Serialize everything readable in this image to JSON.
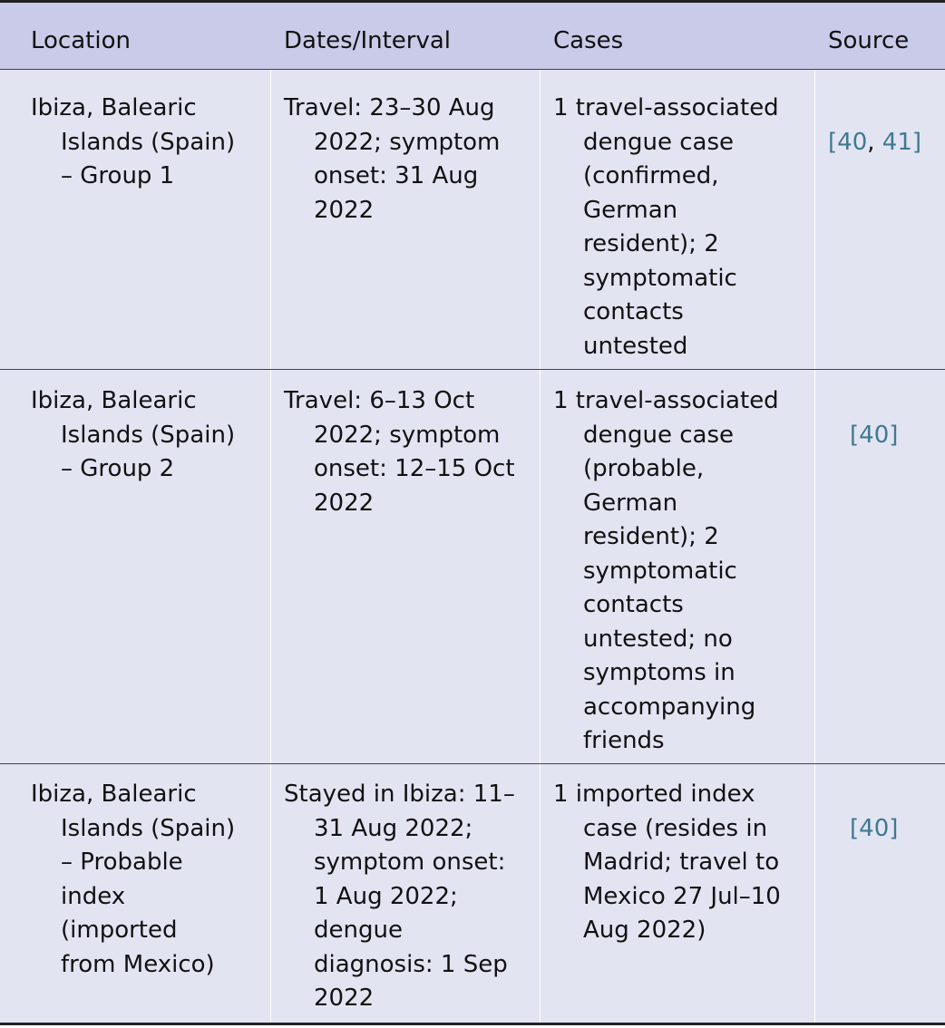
{
  "table": {
    "headers": {
      "location": "Location",
      "dates": "Dates/Interval",
      "cases": "Cases",
      "source": "Source"
    },
    "rows": [
      {
        "location": "Ibiza, Balearic\nIslands (Spain)\n– Group 1",
        "dates": "Travel: 23–30 Aug\n2022; symptom\nonset: 31 Aug\n2022",
        "cases": "1 travel-associated\ndengue case\n(confirmed,\nGerman\nresident); 2\nsymptomatic\ncontacts\nuntested",
        "source_open": "[",
        "source_ref1": "40",
        "source_sep": ", ",
        "source_ref2": "41",
        "source_close": "]"
      },
      {
        "location": "Ibiza, Balearic\nIslands (Spain)\n– Group 2",
        "dates": "Travel: 6–13 Oct\n2022; symptom\nonset: 12–15 Oct\n2022",
        "cases": "1 travel-associated\ndengue case\n(probable,\nGerman\nresident); 2\nsymptomatic\ncontacts\nuntested; no\nsymptoms in\naccompanying\nfriends",
        "source_open": "[",
        "source_ref1": "40",
        "source_close": "]"
      },
      {
        "location": "Ibiza, Balearic\nIslands (Spain)\n– Probable\nindex\n(imported\nfrom Mexico)",
        "dates": "Stayed in Ibiza: 11–\n31 Aug 2022;\nsymptom onset:\n1 Aug 2022;\ndengue\ndiagnosis: 1 Sep\n2022",
        "cases": "1 imported index\ncase (resides in\nMadrid; travel to\nMexico 27 Jul–10\nAug 2022)",
        "source_open": "[",
        "source_ref1": "40",
        "source_close": "]"
      }
    ]
  }
}
